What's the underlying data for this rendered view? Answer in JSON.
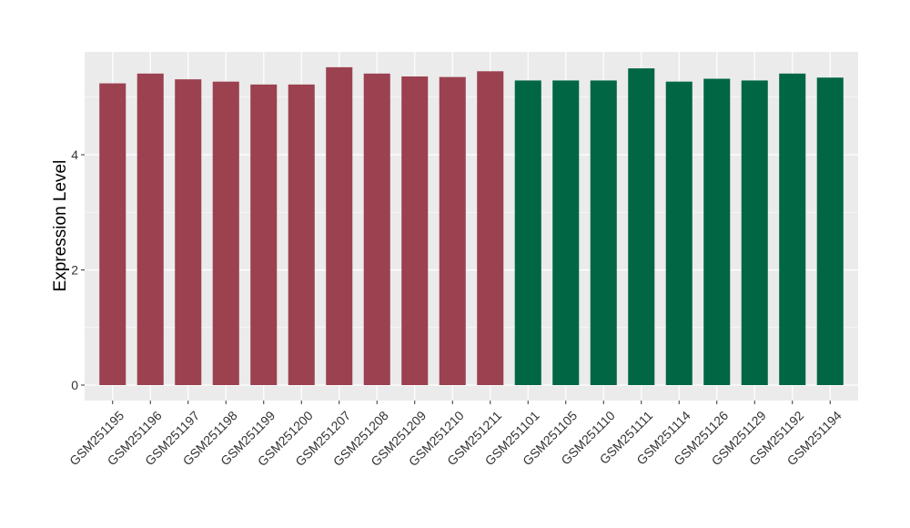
{
  "chart_data": {
    "type": "bar",
    "title": "",
    "xlabel": "",
    "ylabel": "Expression Level",
    "ylim": [
      0,
      5.85
    ],
    "yticks": [
      0,
      2,
      4
    ],
    "grid": true,
    "legend": "none",
    "categories": [
      "GSM251195",
      "GSM251196",
      "GSM251197",
      "GSM251198",
      "GSM251199",
      "GSM251200",
      "GSM251207",
      "GSM251208",
      "GSM251209",
      "GSM251210",
      "GSM251211",
      "GSM251101",
      "GSM251105",
      "GSM251110",
      "GSM251111",
      "GSM251114",
      "GSM251126",
      "GSM251129",
      "GSM251192",
      "GSM251194"
    ],
    "values": [
      5.24,
      5.41,
      5.31,
      5.27,
      5.22,
      5.22,
      5.52,
      5.41,
      5.36,
      5.35,
      5.45,
      5.29,
      5.29,
      5.29,
      5.5,
      5.27,
      5.32,
      5.29,
      5.41,
      5.34
    ],
    "groups": [
      0,
      0,
      0,
      0,
      0,
      0,
      0,
      0,
      0,
      0,
      0,
      1,
      1,
      1,
      1,
      1,
      1,
      1,
      1,
      1
    ],
    "colors": {
      "group_0": "#9b4150",
      "group_1": "#006644",
      "panel": "#ebebeb",
      "grid": "#ffffff"
    }
  }
}
